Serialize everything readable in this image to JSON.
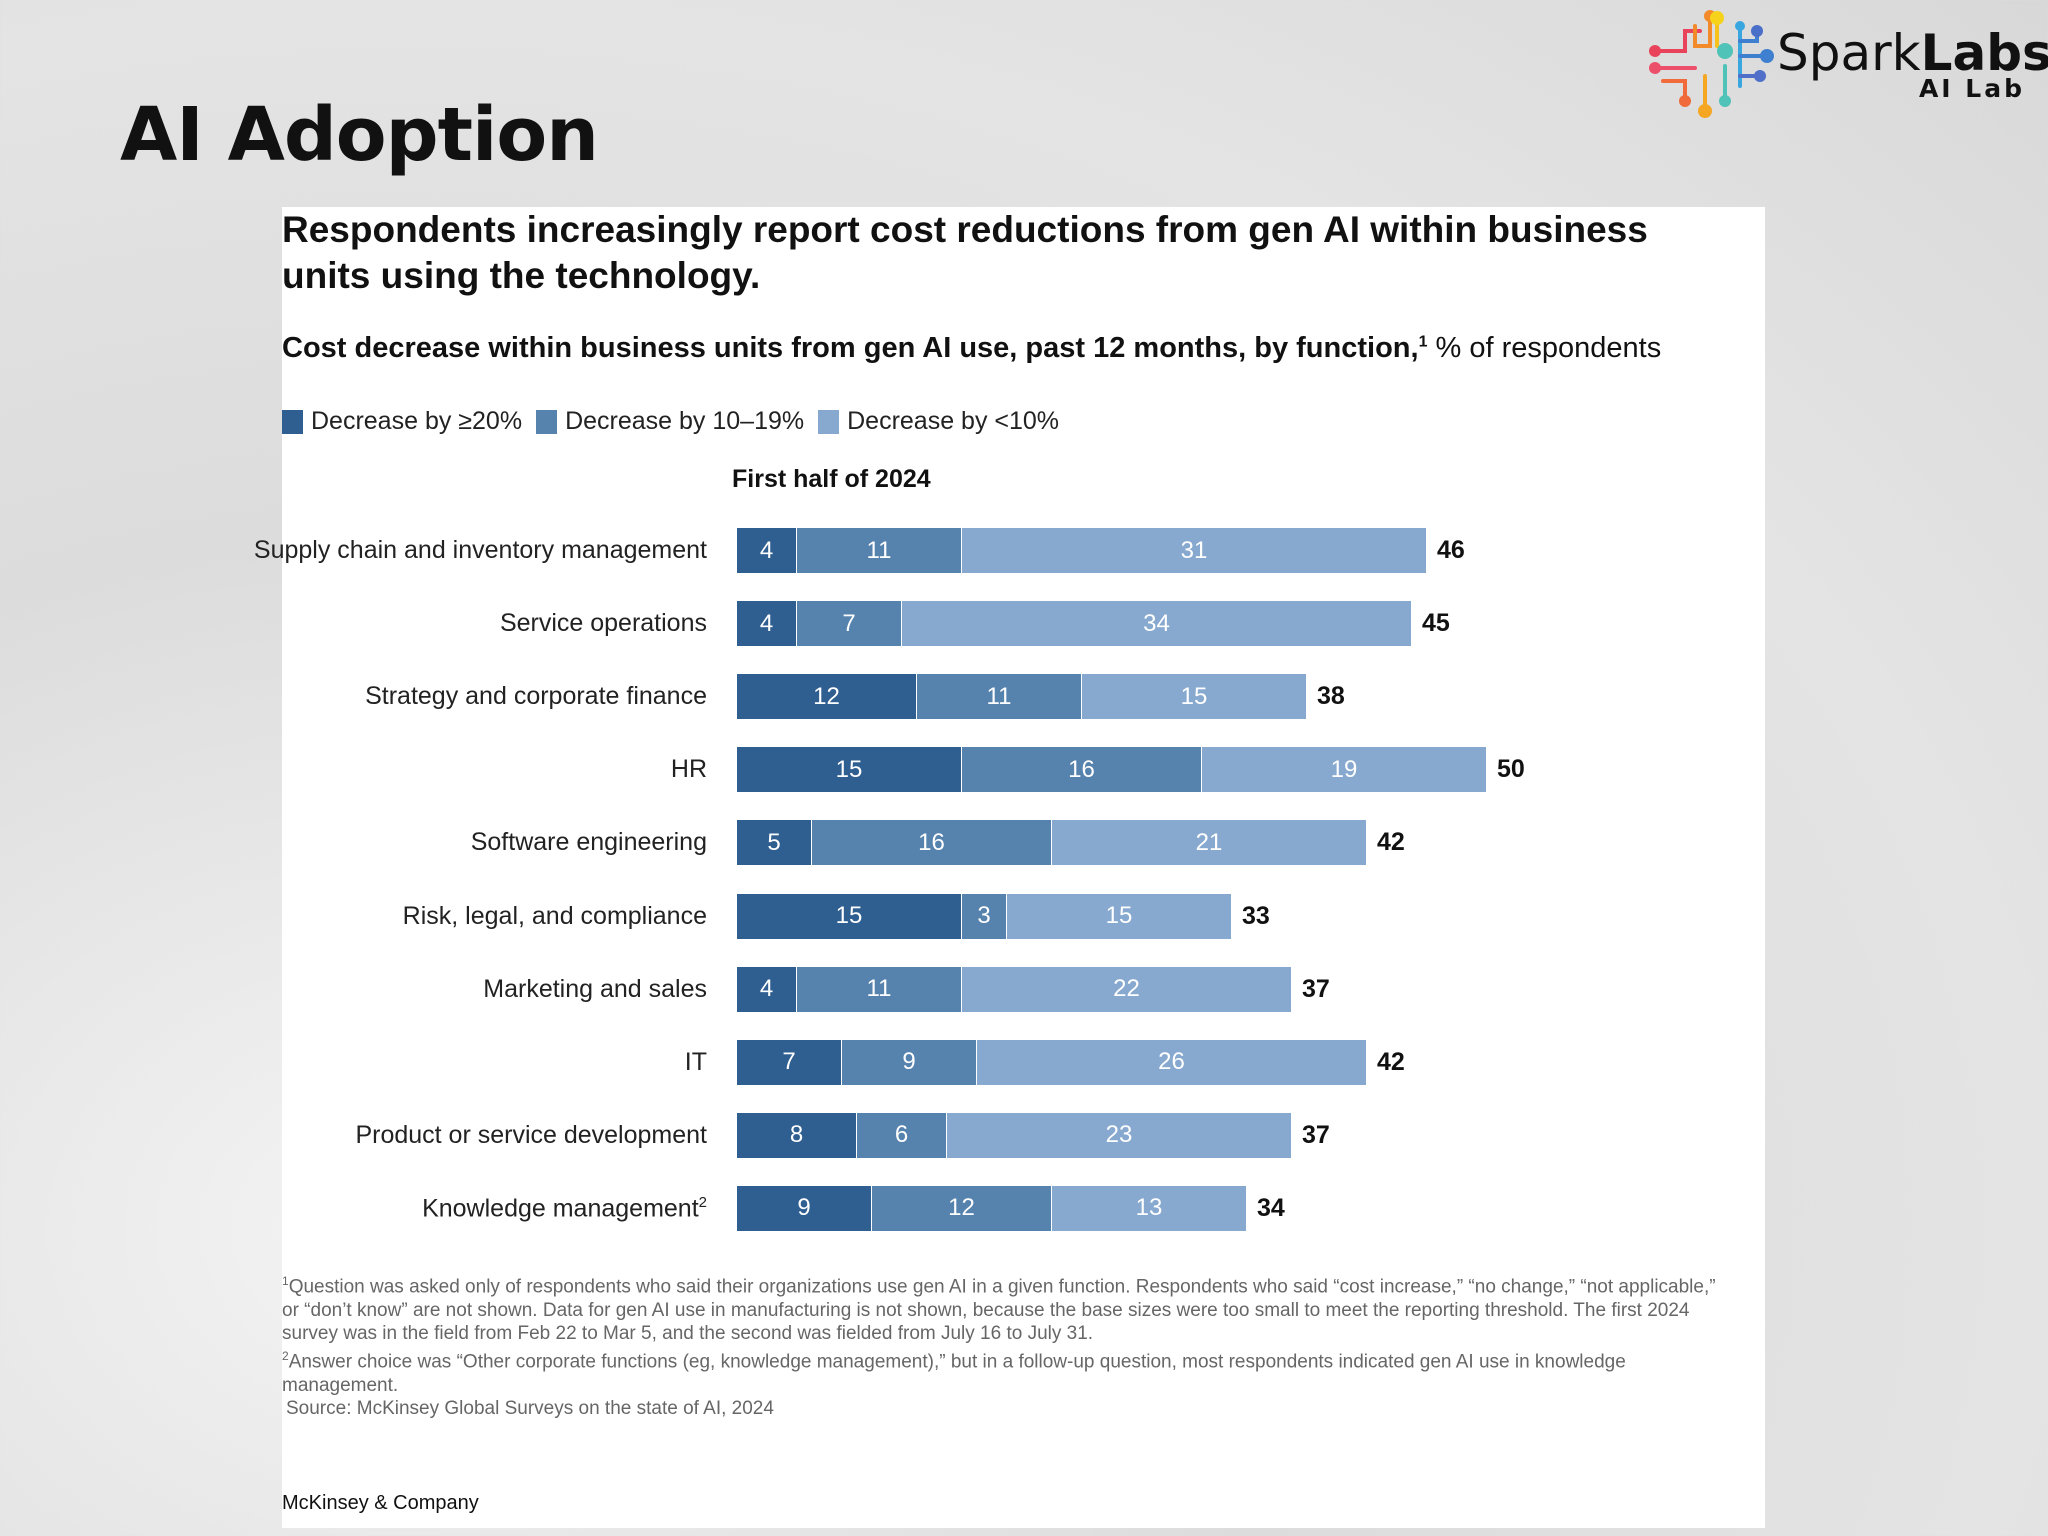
{
  "slide": {
    "title": "AI Adoption"
  },
  "logo": {
    "name_light": "Spark",
    "name_bold": "Labs",
    "subtitle": "AI Lab"
  },
  "chart_data": {
    "type": "bar",
    "orientation": "horizontal",
    "stacked": true,
    "title": "Respondents increasingly report cost reductions from gen AI within business units using the technology.",
    "subtitle_bold": "Cost decrease within business units from gen AI use, past 12 months, by function,",
    "subtitle_sup": "1",
    "subtitle_rest": " % of respondents",
    "period_label": "First half of 2024",
    "categories": [
      "Supply chain and inventory management",
      "Service operations",
      "Strategy and corporate finance",
      "HR",
      "Software engineering",
      "Risk, legal, and compliance",
      "Marketing and sales",
      "IT",
      "Product or service development",
      "Knowledge management"
    ],
    "category_sups": [
      "",
      "",
      "",
      "",
      "",
      "",
      "",
      "",
      "",
      "2"
    ],
    "series": [
      {
        "name": "Decrease by ≥20%",
        "color": "#2f5e90",
        "values": [
          4,
          4,
          12,
          15,
          5,
          15,
          4,
          7,
          8,
          9
        ]
      },
      {
        "name": "Decrease by 10–19%",
        "color": "#5682ae",
        "values": [
          11,
          7,
          11,
          16,
          16,
          3,
          11,
          9,
          6,
          12
        ]
      },
      {
        "name": "Decrease by <10%",
        "color": "#87a9cf",
        "values": [
          31,
          34,
          15,
          19,
          21,
          15,
          22,
          26,
          23,
          13
        ]
      }
    ],
    "totals": [
      46,
      45,
      38,
      50,
      42,
      33,
      37,
      42,
      37,
      34
    ],
    "legend_position": "top-left",
    "grid": false
  },
  "footnotes": [
    {
      "sup": "1",
      "text": "Question was asked only of respondents who said their organizations use gen AI in a given function. Respondents who said “cost increase,” “no change,” “not applicable,” or “don’t know” are not shown. Data for gen AI use in manufacturing is not shown, because the base sizes were too small to meet the reporting threshold. The first 2024 survey was in the field from Feb 22 to Mar 5, and the second was fielded from July 16 to July 31."
    },
    {
      "sup": "2",
      "text": "Answer choice was “Other corporate functions (eg, knowledge management),” but in a follow-up question, most respondents indicated gen AI use in knowledge management."
    }
  ],
  "source": "Source: McKinsey Global Surveys on the state of AI, 2024",
  "brand": "McKinsey & Company"
}
